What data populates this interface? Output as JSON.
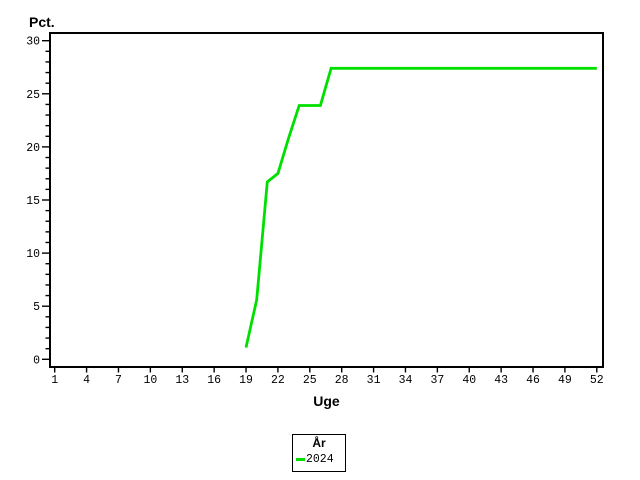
{
  "chart_data": {
    "type": "line",
    "title": "",
    "xlabel": "Uge",
    "ylabel": "Pct.",
    "xlim": [
      1,
      52
    ],
    "ylim": [
      0,
      30
    ],
    "x_ticks": [
      1,
      4,
      7,
      10,
      13,
      16,
      19,
      22,
      25,
      28,
      31,
      34,
      37,
      40,
      43,
      46,
      49,
      52
    ],
    "y_ticks": [
      0,
      5,
      10,
      15,
      20,
      25,
      30
    ],
    "y_minor_tick_step": 1,
    "grid": false,
    "frame": true,
    "legend": {
      "title": "År",
      "position": "bottom-center-outside",
      "entries": [
        {
          "label": "2024",
          "color": "#00e000"
        }
      ]
    },
    "series": [
      {
        "name": "2024",
        "color": "#00e000",
        "x": [
          19,
          20,
          21,
          22,
          23,
          24,
          25,
          26,
          27,
          28,
          29,
          30,
          31,
          32,
          33,
          34,
          35,
          36,
          37,
          38,
          39,
          40,
          41,
          42,
          43,
          44,
          45,
          46,
          47,
          48,
          49,
          50,
          51,
          52
        ],
        "y": [
          1.1,
          5.6,
          16.7,
          17.5,
          20.8,
          23.9,
          23.9,
          23.9,
          27.4,
          27.4,
          27.4,
          27.4,
          27.4,
          27.4,
          27.4,
          27.4,
          27.4,
          27.4,
          27.4,
          27.4,
          27.4,
          27.4,
          27.4,
          27.4,
          27.4,
          27.4,
          27.4,
          27.4,
          27.4,
          27.4,
          27.4,
          27.4,
          27.4,
          27.4
        ]
      }
    ]
  }
}
